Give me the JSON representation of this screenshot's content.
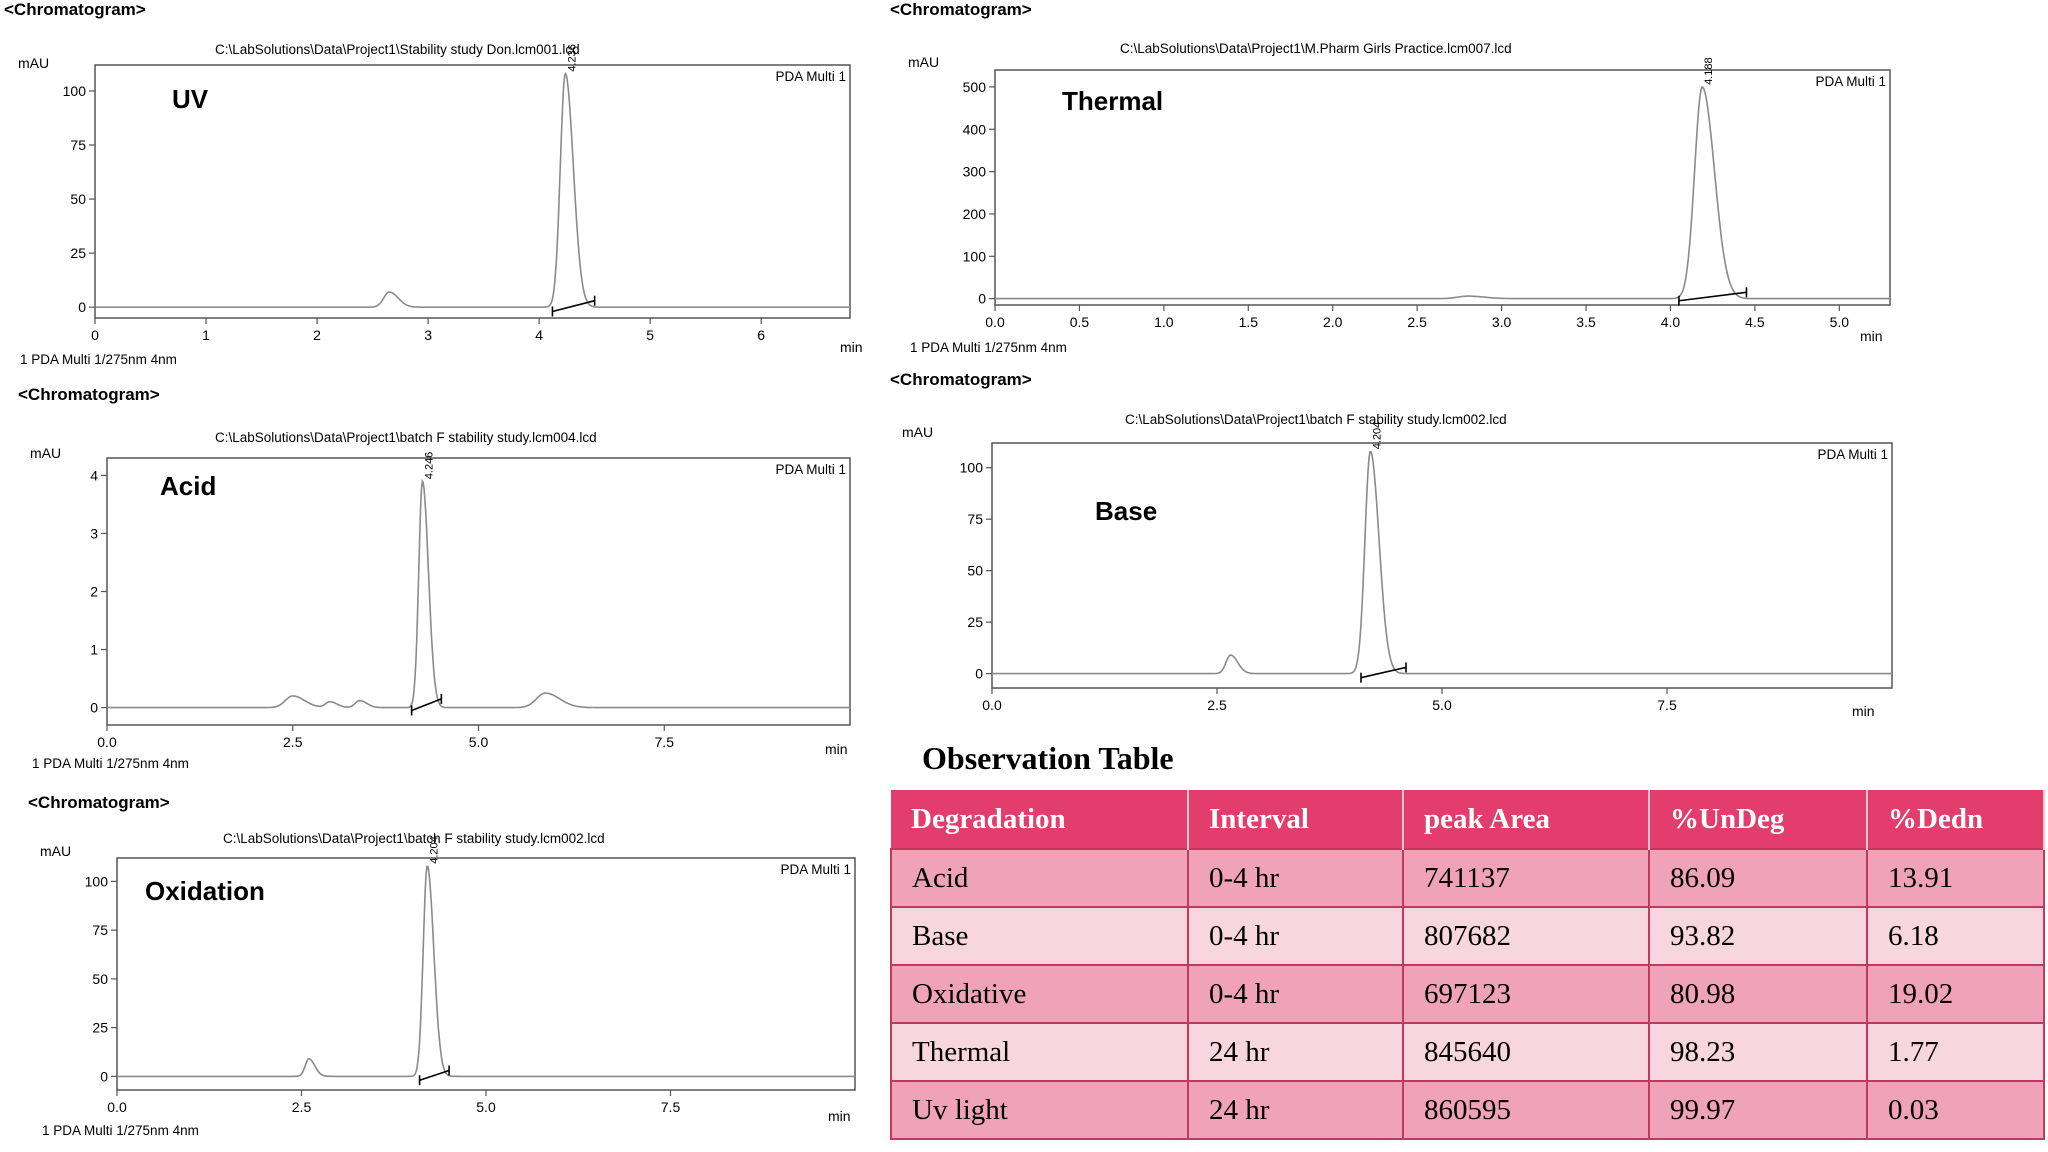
{
  "chromatograms": [
    {
      "id": "uv",
      "header": "<Chromatogram>",
      "file_path": "C:\\LabSolutions\\Data\\Project1\\Stability study Don.lcm001.lcd",
      "y_unit": "mAU",
      "sample_label": "UV",
      "detector_label": "PDA Multi 1",
      "x_unit": "min",
      "footer": "1  PDA Multi 1/275nm 4nm",
      "peak_label": "4.236",
      "x_ticks": [
        "0",
        "1",
        "2",
        "3",
        "4",
        "5",
        "6"
      ],
      "y_ticks": [
        "0",
        "25",
        "50",
        "75",
        "100"
      ],
      "colors": {
        "trace": "#8a8a8a",
        "axis": "#555555"
      },
      "chart_data": {
        "type": "line",
        "x_range": [
          0,
          6.8
        ],
        "y_range": [
          -5,
          112
        ],
        "x_tick_values": [
          0,
          1,
          2,
          3,
          4,
          5,
          6
        ],
        "y_tick_values": [
          0,
          25,
          50,
          75,
          100
        ],
        "baseline": 0,
        "peaks": [
          {
            "rt": 2.65,
            "height": 7,
            "width": 0.05
          },
          {
            "rt": 4.236,
            "height": 108,
            "width": 0.045
          }
        ],
        "integration": {
          "start": [
            4.12,
            -2
          ],
          "end": [
            4.5,
            3
          ]
        }
      }
    },
    {
      "id": "thermal",
      "header": "<Chromatogram>",
      "file_path": "C:\\LabSolutions\\Data\\Project1\\M.Pharm Girls Practice.lcm007.lcd",
      "y_unit": "mAU",
      "sample_label": "Thermal",
      "detector_label": "PDA Multi 1",
      "x_unit": "min",
      "footer": "1  PDA Multi 1/275nm 4nm",
      "peak_label": "4.188",
      "x_ticks": [
        "0.0",
        "0.5",
        "1.0",
        "1.5",
        "2.0",
        "2.5",
        "3.0",
        "3.5",
        "4.0",
        "4.5",
        "5.0"
      ],
      "y_ticks": [
        "0",
        "100",
        "200",
        "300",
        "400",
        "500"
      ],
      "colors": {
        "trace": "#8a8a8a",
        "axis": "#555555"
      },
      "chart_data": {
        "type": "line",
        "x_range": [
          0,
          5.3
        ],
        "y_range": [
          -15,
          540
        ],
        "x_tick_values": [
          0,
          0.5,
          1,
          1.5,
          2,
          2.5,
          3,
          3.5,
          4,
          4.5,
          5
        ],
        "y_tick_values": [
          0,
          100,
          200,
          300,
          400,
          500
        ],
        "baseline": 0,
        "peaks": [
          {
            "rt": 2.8,
            "height": 6,
            "width": 0.06
          },
          {
            "rt": 4.188,
            "height": 500,
            "width": 0.045
          }
        ],
        "integration": {
          "start": [
            4.05,
            -5
          ],
          "end": [
            4.45,
            15
          ]
        }
      }
    },
    {
      "id": "acid",
      "header": "<Chromatogram>",
      "file_path": "C:\\LabSolutions\\Data\\Project1\\batch F stability study.lcm004.lcd",
      "y_unit": "mAU",
      "sample_label": "Acid",
      "detector_label": "PDA Multi 1",
      "x_unit": "min",
      "footer": "1  PDA Multi 1/275nm 4nm",
      "peak_label": "4.246",
      "x_ticks": [
        "0.0",
        "2.5",
        "5.0",
        "7.5"
      ],
      "y_ticks": [
        "0",
        "1",
        "2",
        "3",
        "4"
      ],
      "colors": {
        "trace": "#8a8a8a",
        "axis": "#555555"
      },
      "chart_data": {
        "type": "line",
        "x_range": [
          0,
          10
        ],
        "y_range": [
          -0.3,
          4.3
        ],
        "x_tick_values": [
          0,
          2.5,
          5,
          7.5
        ],
        "y_tick_values": [
          0,
          1,
          2,
          3,
          4
        ],
        "baseline": 0,
        "peaks": [
          {
            "rt": 2.5,
            "height": 0.2,
            "width": 0.1
          },
          {
            "rt": 3.0,
            "height": 0.1,
            "width": 0.06
          },
          {
            "rt": 3.4,
            "height": 0.12,
            "width": 0.06
          },
          {
            "rt": 4.246,
            "height": 3.9,
            "width": 0.05
          },
          {
            "rt": 5.9,
            "height": 0.25,
            "width": 0.12
          }
        ],
        "integration": {
          "start": [
            4.1,
            -0.05
          ],
          "end": [
            4.5,
            0.15
          ]
        }
      }
    },
    {
      "id": "base",
      "header": "<Chromatogram>",
      "file_path": "C:\\LabSolutions\\Data\\Project1\\batch F stability study.lcm002.lcd",
      "y_unit": "mAU",
      "sample_label": "Base",
      "detector_label": "PDA Multi 1",
      "x_unit": "min",
      "footer": "",
      "peak_label": "4.204",
      "x_ticks": [
        "0.0",
        "2.5",
        "5.0",
        "7.5"
      ],
      "y_ticks": [
        "0",
        "25",
        "50",
        "75",
        "100"
      ],
      "colors": {
        "trace": "#8a8a8a",
        "axis": "#555555"
      },
      "chart_data": {
        "type": "line",
        "x_range": [
          0,
          10
        ],
        "y_range": [
          -7,
          112
        ],
        "x_tick_values": [
          0,
          2.5,
          5,
          7.5
        ],
        "y_tick_values": [
          0,
          25,
          50,
          75,
          100
        ],
        "baseline": 0,
        "peaks": [
          {
            "rt": 2.65,
            "height": 9,
            "width": 0.05
          },
          {
            "rt": 4.204,
            "height": 108,
            "width": 0.06
          }
        ],
        "integration": {
          "start": [
            4.1,
            -2
          ],
          "end": [
            4.6,
            3
          ]
        }
      }
    },
    {
      "id": "oxidation",
      "header": "<Chromatogram>",
      "file_path": "C:\\LabSolutions\\Data\\Project1\\batch F stability study.lcm002.lcd",
      "y_unit": "mAU",
      "sample_label": "Oxidation",
      "detector_label": "PDA Multi 1",
      "x_unit": "min",
      "footer": "1  PDA Multi 1/275nm 4nm",
      "peak_label": "4.204",
      "x_ticks": [
        "0.0",
        "2.5",
        "5.0",
        "7.5"
      ],
      "y_ticks": [
        "0",
        "25",
        "50",
        "75",
        "100"
      ],
      "colors": {
        "trace": "#8a8a8a",
        "axis": "#555555"
      },
      "chart_data": {
        "type": "line",
        "x_range": [
          0,
          10
        ],
        "y_range": [
          -7,
          112
        ],
        "x_tick_values": [
          0,
          2.5,
          5,
          7.5
        ],
        "y_tick_values": [
          0,
          25,
          50,
          75,
          100
        ],
        "baseline": 0,
        "peaks": [
          {
            "rt": 2.6,
            "height": 9,
            "width": 0.05
          },
          {
            "rt": 4.204,
            "height": 108,
            "width": 0.055
          }
        ],
        "integration": {
          "start": [
            4.1,
            -2
          ],
          "end": [
            4.5,
            3
          ]
        }
      }
    }
  ],
  "observation_table": {
    "title": "Observation Table",
    "columns": [
      "Degradation",
      "Interval",
      "peak Area",
      "%UnDeg",
      "%Dedn"
    ],
    "rows": [
      [
        "Acid",
        "0-4 hr",
        "741137",
        "86.09",
        "13.91"
      ],
      [
        "Base",
        "0-4 hr",
        "807682",
        "93.82",
        "6.18"
      ],
      [
        "Oxidative",
        "0-4 hr",
        "697123",
        "80.98",
        "19.02"
      ],
      [
        "Thermal",
        "24 hr",
        "845640",
        "98.23",
        "1.77"
      ],
      [
        "Uv light",
        "24 hr",
        "860595",
        "99.97",
        "0.03"
      ]
    ],
    "colors": {
      "header_bg": "#e23d6d",
      "odd_row": "#f0a3b8",
      "even_row": "#f8d6df"
    }
  }
}
